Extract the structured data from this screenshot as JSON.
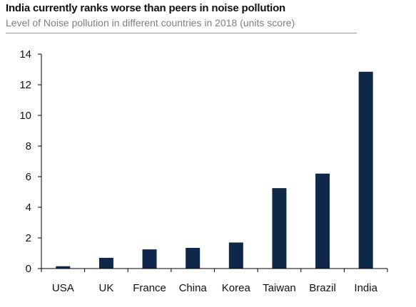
{
  "chart_data": {
    "type": "bar",
    "title": "India currently ranks worse than peers in noise pollution",
    "subtitle": "Level of Noise pollution in different countries in 2018 (units score)",
    "categories": [
      "USA",
      "UK",
      "France",
      "China",
      "Korea",
      "Taiwan",
      "Brazil",
      "India"
    ],
    "values": [
      0.15,
      0.7,
      1.25,
      1.35,
      1.7,
      5.25,
      6.2,
      12.85
    ],
    "ylim": [
      0,
      14
    ],
    "yticks": [
      0,
      2,
      4,
      6,
      8,
      10,
      12,
      14
    ],
    "xlabel": "",
    "ylabel": "",
    "grid": false,
    "bar_color": "#0f2749"
  }
}
